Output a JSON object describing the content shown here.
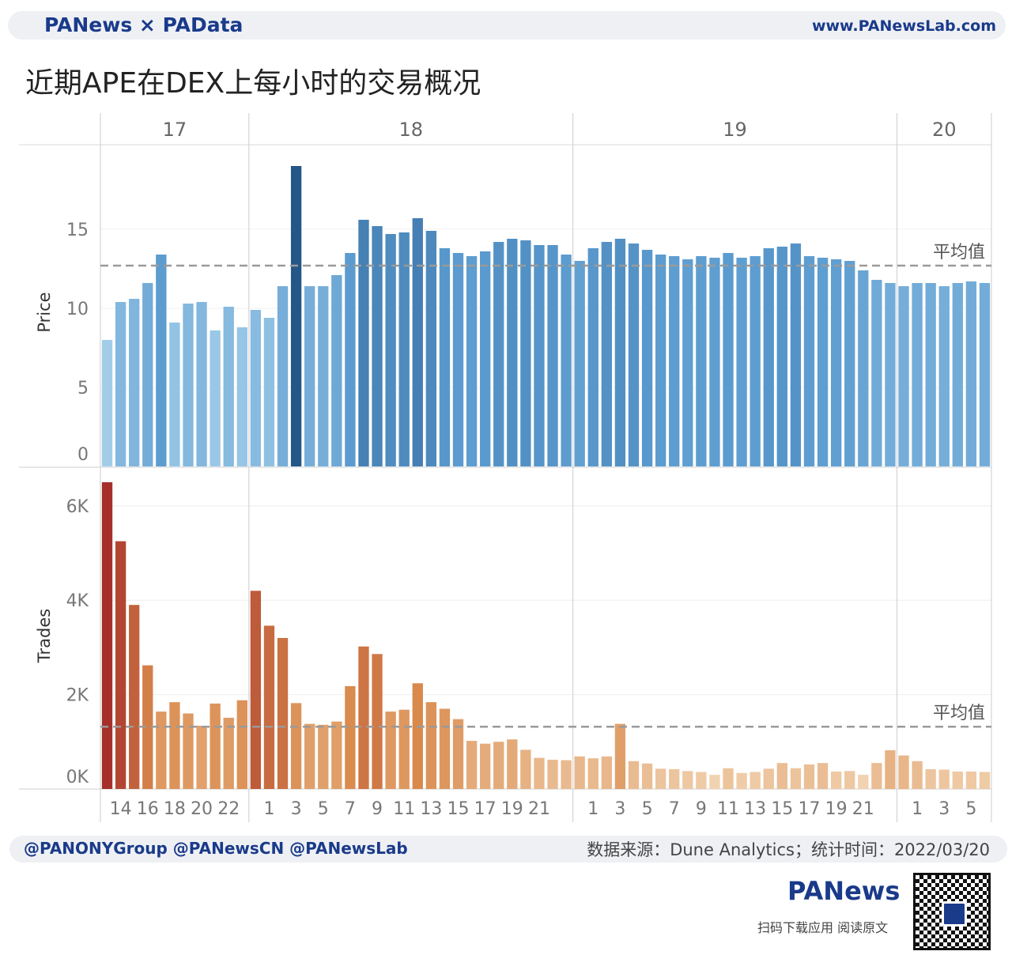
{
  "header": {
    "brand": "PANews × PAData",
    "site": "www.PANewsLab.com"
  },
  "title": "近期APE在DEX上每小时的交易概况",
  "footer": {
    "social": "@PANONYGroup  @PANewsCN     @PANewsLab",
    "source": "数据来源：Dune Analytics；统计时间：2022/03/20",
    "brand": "PANews",
    "scan_text": "扫码下载应用  阅读原文"
  },
  "colors": {
    "price_light": "#a9d2ec",
    "price_mid": "#5b9bcf",
    "price_dark": "#1f4e80",
    "trades_dark": "#a5302a",
    "trades_mid": "#d9894c",
    "trades_light": "#f1d3b1"
  },
  "chart_data": {
    "type": "bar",
    "day_labels": [
      "17",
      "18",
      "19",
      "20"
    ],
    "day_hour_counts": [
      11,
      24,
      24,
      7
    ],
    "x_tick_labels": [
      {
        "day": "17",
        "labels": [
          "14",
          "16",
          "18",
          "20",
          "22"
        ],
        "hours": [
          14,
          16,
          18,
          20,
          22
        ]
      },
      {
        "day": "18",
        "labels": [
          "1",
          "3",
          "5",
          "7",
          "9",
          "11",
          "13",
          "15",
          "17",
          "19",
          "21"
        ],
        "hours": [
          1,
          3,
          5,
          7,
          9,
          11,
          13,
          15,
          17,
          19,
          21
        ]
      },
      {
        "day": "19",
        "labels": [
          "1",
          "3",
          "5",
          "7",
          "9",
          "11",
          "13",
          "15",
          "17",
          "19",
          "21"
        ],
        "hours": [
          1,
          3,
          5,
          7,
          9,
          11,
          13,
          15,
          17,
          19,
          21
        ]
      },
      {
        "day": "20",
        "labels": [
          "1",
          "3",
          "5"
        ],
        "hours": [
          1,
          3,
          5
        ]
      }
    ],
    "price": {
      "ylabel": "Price",
      "ylim": [
        0,
        19.5
      ],
      "ticks": [
        0,
        5,
        10,
        15
      ],
      "average": 12.7,
      "average_label": "平均值",
      "values": [
        8.0,
        10.4,
        10.6,
        11.6,
        13.4,
        9.1,
        10.3,
        10.4,
        8.6,
        10.1,
        8.8,
        9.9,
        9.4,
        11.4,
        19.0,
        11.4,
        11.4,
        12.1,
        13.5,
        15.6,
        15.2,
        14.7,
        14.8,
        15.7,
        14.9,
        13.8,
        13.5,
        13.3,
        13.6,
        14.2,
        14.4,
        14.3,
        14.0,
        14.0,
        13.4,
        13.0,
        13.8,
        14.2,
        14.4,
        14.1,
        13.7,
        13.4,
        13.3,
        13.1,
        13.3,
        13.2,
        13.5,
        13.2,
        13.3,
        13.8,
        13.9,
        14.1,
        13.3,
        13.2,
        13.1,
        13.0,
        12.4,
        11.8,
        11.6,
        11.4,
        11.6,
        11.6,
        11.4,
        11.6,
        11.7,
        11.6
      ]
    },
    "trades": {
      "ylabel": "Trades",
      "ylim": [
        0,
        6500
      ],
      "ticks": [
        0,
        2000,
        4000,
        6000
      ],
      "tick_labels": [
        "0K",
        "2K",
        "4K",
        "6K"
      ],
      "average": 1320,
      "average_label": "平均值",
      "values": [
        6500,
        5250,
        3900,
        2620,
        1640,
        1840,
        1600,
        1340,
        1810,
        1510,
        1880,
        4200,
        3460,
        3200,
        1820,
        1380,
        1360,
        1430,
        2180,
        3020,
        2860,
        1640,
        1680,
        2240,
        1840,
        1700,
        1480,
        1020,
        960,
        1000,
        1050,
        830,
        660,
        620,
        610,
        690,
        650,
        690,
        1380,
        590,
        540,
        430,
        420,
        380,
        360,
        300,
        440,
        340,
        360,
        430,
        550,
        440,
        520,
        550,
        370,
        380,
        300,
        550,
        820,
        710,
        590,
        420,
        410,
        370,
        370,
        360
      ]
    }
  }
}
